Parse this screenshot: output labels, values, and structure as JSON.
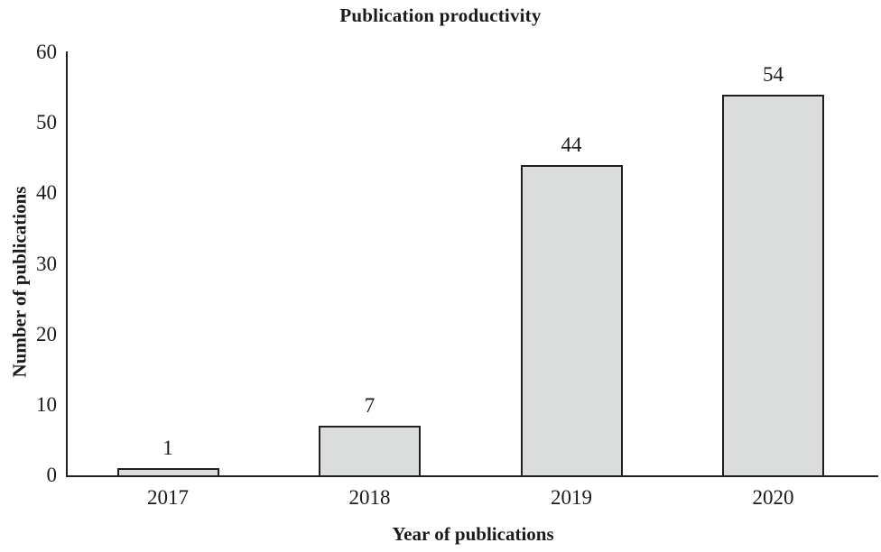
{
  "chart_data": {
    "type": "bar",
    "title": "Publication productivity",
    "xlabel": "Year of publications",
    "ylabel": "Number of publications",
    "categories": [
      "2017",
      "2018",
      "2019",
      "2020"
    ],
    "values": [
      1,
      7,
      44,
      54
    ],
    "data_labels": [
      "1",
      "7",
      "44",
      "54"
    ],
    "ylim": [
      0,
      60
    ],
    "yticks": [
      0,
      10,
      20,
      30,
      40,
      50,
      60
    ],
    "grid": false,
    "legend": "none",
    "colors": {
      "bar_fill": "#dbdddd",
      "bar_border": "#1f1f1f",
      "axis": "#1f1f1f",
      "text": "#1a1a1a",
      "background": "#ffffff"
    }
  }
}
